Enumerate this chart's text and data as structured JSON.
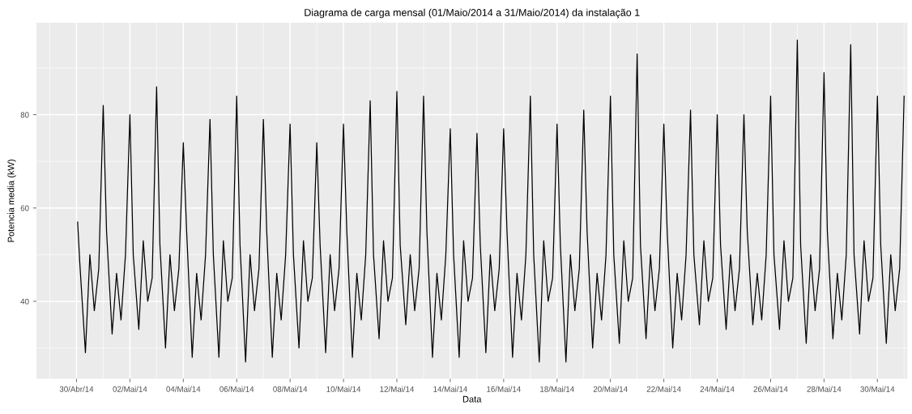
{
  "chart_data": {
    "type": "line",
    "title": "Diagrama de carga mensal (01/Maio/2014 a 31/Maio/2014) da instalação 1",
    "xlabel": "Data",
    "ylabel": "Potencia media (kW)",
    "color": "#000000",
    "x": [
      "2014-04-30T01:00",
      "2014-04-30T03:00",
      "2014-04-30T08:00",
      "2014-04-30T12:00",
      "2014-04-30T16:00",
      "2014-04-30T20:00",
      "2014-05-01T00:00",
      "2014-05-01T03:00",
      "2014-05-01T08:00",
      "2014-05-01T12:00",
      "2014-05-01T16:00",
      "2014-05-01T20:00",
      "2014-05-02T00:00",
      "2014-05-02T03:00",
      "2014-05-02T08:00",
      "2014-05-02T12:00",
      "2014-05-02T16:00",
      "2014-05-02T20:00",
      "2014-05-03T00:00",
      "2014-05-03T03:00",
      "2014-05-03T08:00",
      "2014-05-03T12:00",
      "2014-05-03T16:00",
      "2014-05-03T20:00",
      "2014-05-04T00:00",
      "2014-05-04T03:00",
      "2014-05-04T08:00",
      "2014-05-04T12:00",
      "2014-05-04T16:00",
      "2014-05-04T20:00",
      "2014-05-05T00:00",
      "2014-05-05T03:00",
      "2014-05-05T08:00",
      "2014-05-05T12:00",
      "2014-05-05T16:00",
      "2014-05-05T20:00",
      "2014-05-06T00:00",
      "2014-05-06T03:00",
      "2014-05-06T08:00",
      "2014-05-06T12:00",
      "2014-05-06T16:00",
      "2014-05-06T20:00",
      "2014-05-07T00:00",
      "2014-05-07T03:00",
      "2014-05-07T08:00",
      "2014-05-07T12:00",
      "2014-05-07T16:00",
      "2014-05-07T20:00",
      "2014-05-08T00:00",
      "2014-05-08T03:00",
      "2014-05-08T08:00",
      "2014-05-08T12:00",
      "2014-05-08T16:00",
      "2014-05-08T20:00",
      "2014-05-09T00:00",
      "2014-05-09T03:00",
      "2014-05-09T08:00",
      "2014-05-09T12:00",
      "2014-05-09T16:00",
      "2014-05-09T20:00",
      "2014-05-10T00:00",
      "2014-05-10T03:00",
      "2014-05-10T08:00",
      "2014-05-10T12:00",
      "2014-05-10T16:00",
      "2014-05-10T20:00",
      "2014-05-11T00:00",
      "2014-05-11T03:00",
      "2014-05-11T08:00",
      "2014-05-11T12:00",
      "2014-05-11T16:00",
      "2014-05-11T20:00",
      "2014-05-12T00:00",
      "2014-05-12T03:00",
      "2014-05-12T08:00",
      "2014-05-12T12:00",
      "2014-05-12T16:00",
      "2014-05-12T20:00",
      "2014-05-13T00:00",
      "2014-05-13T03:00",
      "2014-05-13T08:00",
      "2014-05-13T12:00",
      "2014-05-13T16:00",
      "2014-05-13T20:00",
      "2014-05-14T00:00",
      "2014-05-14T03:00",
      "2014-05-14T08:00",
      "2014-05-14T12:00",
      "2014-05-14T16:00",
      "2014-05-14T20:00",
      "2014-05-15T00:00",
      "2014-05-15T03:00",
      "2014-05-15T08:00",
      "2014-05-15T12:00",
      "2014-05-15T16:00",
      "2014-05-15T20:00",
      "2014-05-16T00:00",
      "2014-05-16T03:00",
      "2014-05-16T08:00",
      "2014-05-16T12:00",
      "2014-05-16T16:00",
      "2014-05-16T20:00",
      "2014-05-17T00:00",
      "2014-05-17T03:00",
      "2014-05-17T08:00",
      "2014-05-17T12:00",
      "2014-05-17T16:00",
      "2014-05-17T20:00",
      "2014-05-18T00:00",
      "2014-05-18T03:00",
      "2014-05-18T08:00",
      "2014-05-18T12:00",
      "2014-05-18T16:00",
      "2014-05-18T20:00",
      "2014-05-19T00:00",
      "2014-05-19T03:00",
      "2014-05-19T08:00",
      "2014-05-19T12:00",
      "2014-05-19T16:00",
      "2014-05-19T20:00",
      "2014-05-20T00:00",
      "2014-05-20T03:00",
      "2014-05-20T08:00",
      "2014-05-20T12:00",
      "2014-05-20T16:00",
      "2014-05-20T20:00",
      "2014-05-21T00:00",
      "2014-05-21T03:00",
      "2014-05-21T08:00",
      "2014-05-21T12:00",
      "2014-05-21T16:00",
      "2014-05-21T20:00",
      "2014-05-22T00:00",
      "2014-05-22T03:00",
      "2014-05-22T08:00",
      "2014-05-22T12:00",
      "2014-05-22T16:00",
      "2014-05-22T20:00",
      "2014-05-23T00:00",
      "2014-05-23T03:00",
      "2014-05-23T08:00",
      "2014-05-23T12:00",
      "2014-05-23T16:00",
      "2014-05-23T20:00",
      "2014-05-24T00:00",
      "2014-05-24T03:00",
      "2014-05-24T08:00",
      "2014-05-24T12:00",
      "2014-05-24T16:00",
      "2014-05-24T20:00",
      "2014-05-25T00:00",
      "2014-05-25T03:00",
      "2014-05-25T08:00",
      "2014-05-25T12:00",
      "2014-05-25T16:00",
      "2014-05-25T20:00",
      "2014-05-26T00:00",
      "2014-05-26T03:00",
      "2014-05-26T08:00",
      "2014-05-26T12:00",
      "2014-05-26T16:00",
      "2014-05-26T20:00",
      "2014-05-27T00:00",
      "2014-05-27T03:00",
      "2014-05-27T08:00",
      "2014-05-27T12:00",
      "2014-05-27T16:00",
      "2014-05-27T20:00",
      "2014-05-28T00:00",
      "2014-05-28T03:00",
      "2014-05-28T08:00",
      "2014-05-28T12:00",
      "2014-05-28T16:00",
      "2014-05-28T20:00",
      "2014-05-29T00:00",
      "2014-05-29T03:00",
      "2014-05-29T08:00",
      "2014-05-29T12:00",
      "2014-05-29T16:00",
      "2014-05-29T20:00",
      "2014-05-30T00:00",
      "2014-05-30T03:00",
      "2014-05-30T08:00",
      "2014-05-30T12:00",
      "2014-05-30T16:00",
      "2014-05-30T20:00",
      "2014-05-31T00:00"
    ],
    "values": [
      57,
      48,
      29,
      50,
      38,
      47,
      82,
      55,
      33,
      46,
      36,
      50,
      80,
      50,
      34,
      53,
      40,
      45,
      86,
      52,
      30,
      50,
      38,
      47,
      74,
      55,
      28,
      46,
      36,
      50,
      79,
      50,
      28,
      53,
      40,
      45,
      84,
      52,
      27,
      50,
      38,
      47,
      79,
      55,
      28,
      46,
      36,
      50,
      78,
      50,
      30,
      53,
      40,
      45,
      74,
      52,
      29,
      50,
      38,
      47,
      78,
      55,
      28,
      46,
      36,
      50,
      83,
      50,
      32,
      53,
      40,
      45,
      85,
      52,
      35,
      50,
      38,
      47,
      84,
      55,
      28,
      46,
      36,
      50,
      77,
      50,
      28,
      53,
      40,
      45,
      76,
      52,
      29,
      50,
      38,
      47,
      77,
      55,
      28,
      46,
      36,
      50,
      84,
      50,
      27,
      53,
      40,
      45,
      78,
      52,
      27,
      50,
      38,
      47,
      81,
      55,
      30,
      46,
      36,
      50,
      84,
      50,
      31,
      53,
      40,
      45,
      93,
      52,
      32,
      50,
      38,
      47,
      78,
      55,
      30,
      46,
      36,
      50,
      81,
      50,
      35,
      53,
      40,
      45,
      80,
      52,
      34,
      50,
      38,
      47,
      80,
      55,
      35,
      46,
      36,
      50,
      84,
      50,
      34,
      53,
      40,
      45,
      96,
      52,
      31,
      50,
      38,
      47,
      89,
      55,
      32,
      46,
      36,
      50,
      95,
      50,
      33,
      53,
      40,
      45,
      84,
      52,
      31,
      50,
      38,
      47,
      84
    ],
    "xlim": [
      "2014-04-28T12:00",
      "2014-05-31T03:00"
    ],
    "xticks": [
      {
        "value": "2014-04-30",
        "label": "30/Abr/14"
      },
      {
        "value": "2014-05-02",
        "label": "02/Mai/14"
      },
      {
        "value": "2014-05-04",
        "label": "04/Mai/14"
      },
      {
        "value": "2014-05-06",
        "label": "06/Mai/14"
      },
      {
        "value": "2014-05-08",
        "label": "08/Mai/14"
      },
      {
        "value": "2014-05-10",
        "label": "10/Mai/14"
      },
      {
        "value": "2014-05-12",
        "label": "12/Mai/14"
      },
      {
        "value": "2014-05-14",
        "label": "14/Mai/14"
      },
      {
        "value": "2014-05-16",
        "label": "16/Mai/14"
      },
      {
        "value": "2014-05-18",
        "label": "18/Mai/14"
      },
      {
        "value": "2014-05-20",
        "label": "20/Mai/14"
      },
      {
        "value": "2014-05-22",
        "label": "22/Mai/14"
      },
      {
        "value": "2014-05-24",
        "label": "24/Mai/14"
      },
      {
        "value": "2014-05-26",
        "label": "26/Mai/14"
      },
      {
        "value": "2014-05-28",
        "label": "28/Mai/14"
      },
      {
        "value": "2014-05-30",
        "label": "30/Mai/14"
      }
    ],
    "ylim": [
      23.4,
      99.7
    ],
    "yticks": [
      40,
      60,
      80
    ],
    "grid": true
  }
}
